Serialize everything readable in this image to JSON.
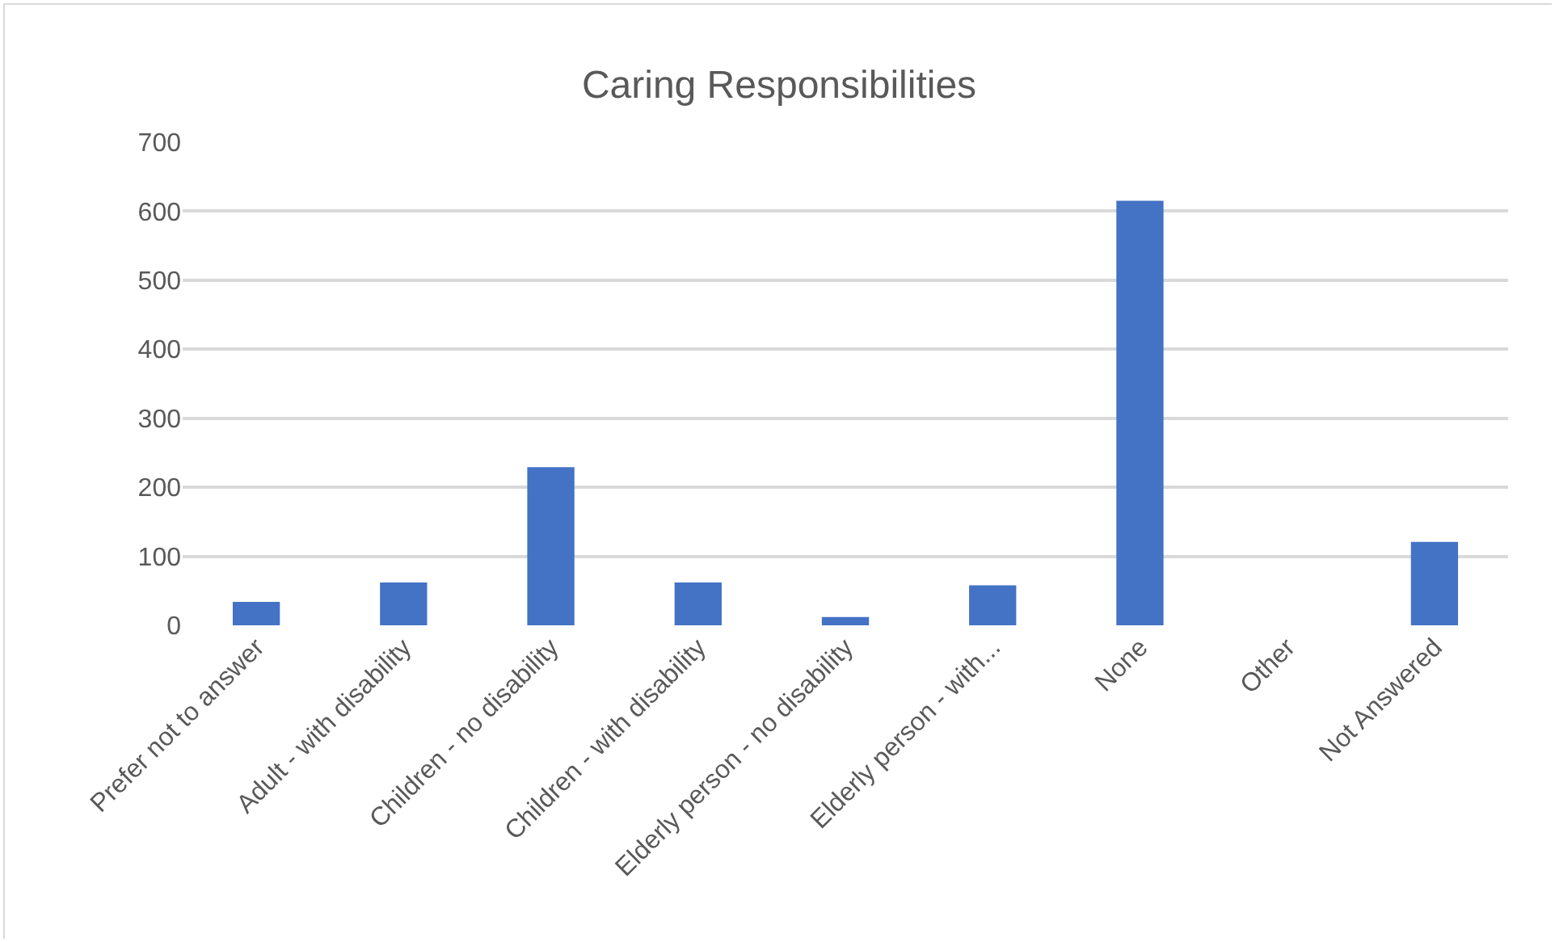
{
  "chart_data": {
    "type": "bar",
    "title": "Caring Responsibilities",
    "categories": [
      "Prefer not to answer",
      "Adult - with disability",
      "Children - no disability",
      "Children - with disability",
      "Elderly person - no disability",
      "Elderly person - with...",
      "None",
      "Other",
      "Not Answered"
    ],
    "values": [
      34,
      62,
      229,
      62,
      12,
      58,
      615,
      0,
      121
    ],
    "color": "#4472c4",
    "ylim": [
      0,
      700
    ],
    "yticks": [
      0,
      100,
      200,
      300,
      400,
      500,
      600,
      700
    ],
    "grid": "y",
    "legend": false
  }
}
